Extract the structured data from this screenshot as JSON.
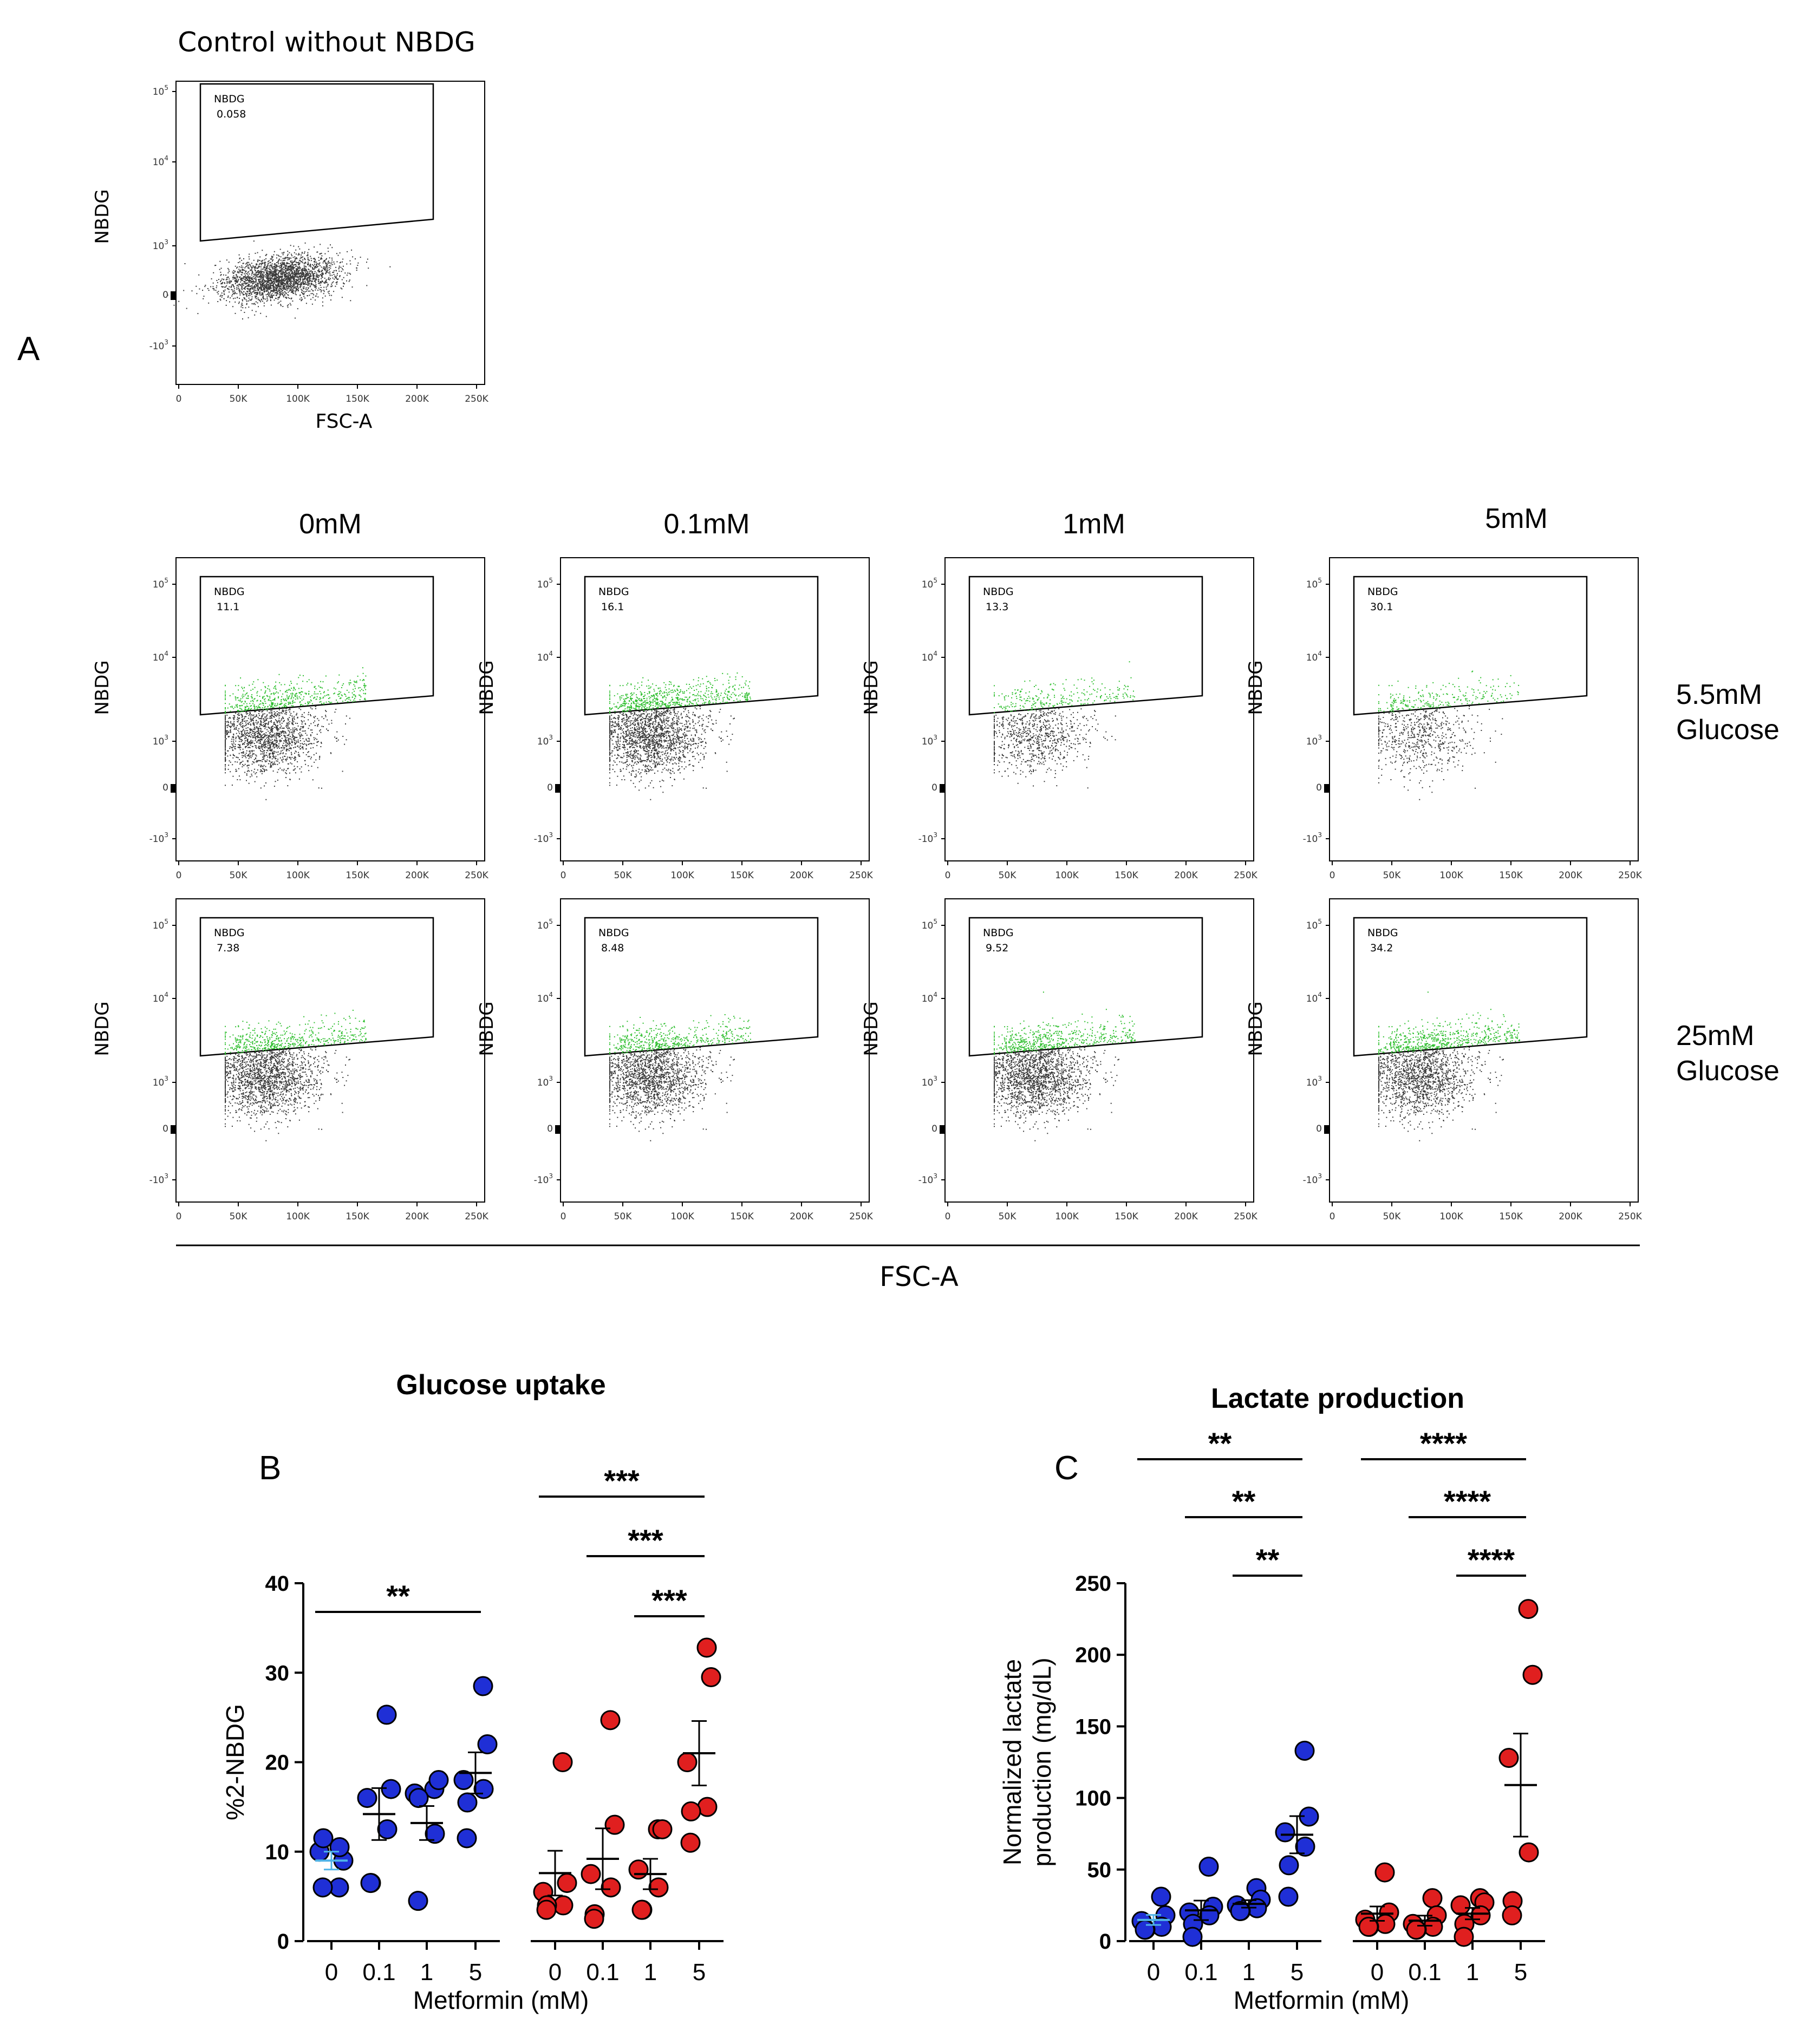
{
  "panel_labels": {
    "a": "A",
    "b": "B",
    "c": "C"
  },
  "flow_common": {
    "ylabel": "NBDG",
    "xlabel": "FSC-A",
    "x_ticks": [
      "0",
      "50K",
      "100K",
      "150K",
      "200K",
      "250K"
    ],
    "gate_name": "NBDG"
  },
  "control": {
    "title": "Control without NBDG",
    "value": "0.058"
  },
  "metformin_headers": [
    "0mM",
    "0.1mM",
    "1mM",
    "5mM"
  ],
  "glucose_rows": [
    {
      "line1": "5.5mM",
      "line2": "Glucose",
      "values": [
        "11.1",
        "16.1",
        "13.3",
        "30.1"
      ]
    },
    {
      "line1": "25mM",
      "line2": "Glucose",
      "values": [
        "7.38",
        "8.48",
        "9.52",
        "34.2"
      ]
    }
  ],
  "colors": {
    "blue": "#1f2fd6",
    "red": "#e01f1f",
    "green": "#2fbf2f",
    "grey": "#3a3a3a",
    "cyan": "#4fb3e8"
  },
  "chart_data": [
    {
      "type": "scatter",
      "title": "Glucose uptake",
      "xlabel": "Metformin (mM)",
      "ylabel": "%2-NBDG",
      "ylim": [
        0,
        40
      ],
      "yticks": [
        "0",
        "10",
        "20",
        "30",
        "40"
      ],
      "categories": [
        "0",
        "0.1",
        "1",
        "5"
      ],
      "series": [
        {
          "name": "5.5mM Glucose",
          "color": "blue",
          "points": [
            [
              6,
              9,
              10,
              10.5,
              11.5,
              6
            ],
            [
              25.3,
              17,
              16,
              12.5,
              6.5,
              6.5
            ],
            [
              17,
              18,
              16.5,
              12,
              16,
              4.5
            ],
            [
              28.5,
              22,
              18,
              17,
              15.5,
              11.5
            ]
          ],
          "mean": [
            9.0,
            14.2,
            13.2,
            18.8
          ],
          "sem": [
            1.0,
            2.9,
            1.9,
            2.3
          ]
        },
        {
          "name": "25mM Glucose",
          "color": "red",
          "points": [
            [
              20,
              6.5,
              5.5,
              4,
              4,
              3.5
            ],
            [
              24.7,
              13,
              7.5,
              6,
              3,
              2.5
            ],
            [
              12.5,
              12.5,
              8,
              6,
              3.5,
              3.5
            ],
            [
              32.8,
              29.5,
              20,
              15,
              14.5,
              11
            ]
          ],
          "mean": [
            7.6,
            9.2,
            7.5,
            21.0
          ],
          "sem": [
            2.5,
            3.4,
            1.7,
            3.6
          ]
        }
      ],
      "significance": [
        {
          "from": 0,
          "to": 3,
          "series": 0,
          "label": "**"
        },
        {
          "from": 0,
          "to": 3,
          "series": 1,
          "label": "***"
        },
        {
          "from": 1,
          "to": 3,
          "series": 1,
          "label": "***"
        },
        {
          "from": 2,
          "to": 3,
          "series": 1,
          "label": "***"
        }
      ]
    },
    {
      "type": "scatter",
      "title": "Lactate production",
      "xlabel": "Metformin (mM)",
      "ylabel_lines": [
        "Normalized lactate",
        "production (mg/dL)"
      ],
      "ylim": [
        0,
        250
      ],
      "yticks": [
        "0",
        "50",
        "100",
        "150",
        "200",
        "250"
      ],
      "categories": [
        "0",
        "0.1",
        "1",
        "5"
      ],
      "series": [
        {
          "name": "5.5mM Glucose",
          "color": "blue",
          "points": [
            [
              31,
              18,
              14,
              10,
              8,
              8
            ],
            [
              52,
              24,
              20,
              18,
              12,
              3
            ],
            [
              37,
              29,
              25,
              23,
              21,
              21
            ],
            [
              133,
              87,
              76,
              66,
              53,
              31
            ]
          ],
          "mean": [
            14.8,
            21.5,
            26.0,
            74.3
          ],
          "sem": [
            3.5,
            6.8,
            2.6,
            13.0
          ]
        },
        {
          "name": "25mM Glucose",
          "color": "red",
          "points": [
            [
              48,
              20,
              15,
              12,
              10,
              10
            ],
            [
              30,
              18,
              12,
              10,
              8,
              8
            ],
            [
              30,
              27,
              25,
              18,
              12,
              3
            ],
            [
              232,
              186,
              128,
              62,
              28,
              18
            ]
          ],
          "mean": [
            19.2,
            14.3,
            19.2,
            109.0
          ],
          "sem": [
            5.0,
            3.5,
            4.0,
            36.0
          ]
        }
      ],
      "significance": [
        {
          "from": 0,
          "to": 3,
          "series": 0,
          "label": "**"
        },
        {
          "from": 1,
          "to": 3,
          "series": 0,
          "label": "**"
        },
        {
          "from": 2,
          "to": 3,
          "series": 0,
          "label": "**"
        },
        {
          "from": 0,
          "to": 3,
          "series": 1,
          "label": "****"
        },
        {
          "from": 1,
          "to": 3,
          "series": 1,
          "label": "****"
        },
        {
          "from": 2,
          "to": 3,
          "series": 1,
          "label": "****"
        }
      ]
    }
  ]
}
